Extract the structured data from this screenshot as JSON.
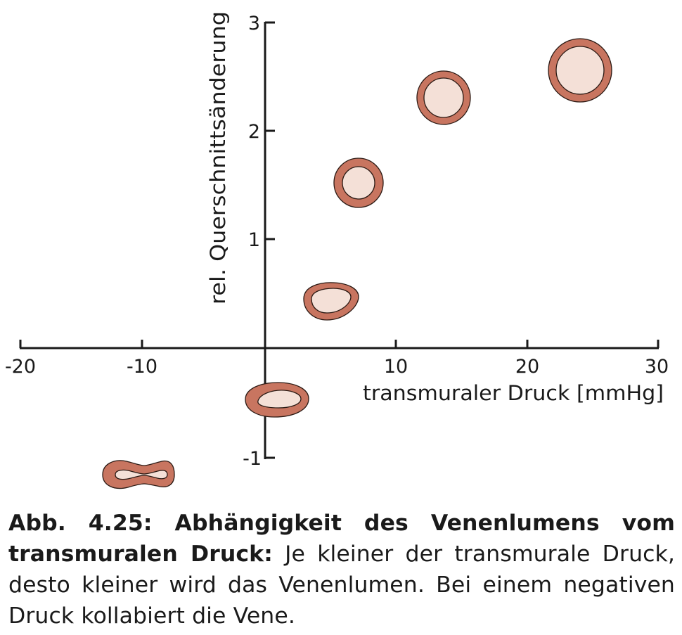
{
  "figure": {
    "xlabel": "transmuraler Druck [mmHg]",
    "ylabel": "rel. Querschnittsänderung",
    "x_ticks": [
      "-20",
      "-10",
      "10",
      "20",
      "30"
    ],
    "y_ticks": [
      "3",
      "2",
      "1",
      "-1"
    ],
    "colors": {
      "wall": "#c87560",
      "lumen": "#f4e0d7",
      "outline": "#2b1a14",
      "axis": "#1a1a1a"
    }
  },
  "chart_data": {
    "type": "scatter",
    "xlabel": "transmuraler Druck [mmHg]",
    "ylabel": "rel. Querschnittsänderung",
    "xlim": [
      -20,
      30
    ],
    "ylim": [
      -1,
      3
    ],
    "points": [
      {
        "x": -10,
        "y": -1.15,
        "shape": "collapsed-dumbbell"
      },
      {
        "x": 1,
        "y": -0.48,
        "shape": "flattened-ellipse"
      },
      {
        "x": 5,
        "y": 0.45,
        "shape": "oval"
      },
      {
        "x": 7.3,
        "y": 1.52,
        "shape": "circle"
      },
      {
        "x": 13.7,
        "y": 2.3,
        "shape": "circle"
      },
      {
        "x": 24,
        "y": 2.56,
        "shape": "large-circle"
      }
    ]
  },
  "caption": {
    "title": "Abb. 4.25: Abhängigkeit des Venenlumens vom transmuralen Druck:",
    "text": " Je kleiner der transmurale Druck, desto kleiner wird das Venenlumen. Bei einem negativen Druck kollabiert die Vene."
  }
}
